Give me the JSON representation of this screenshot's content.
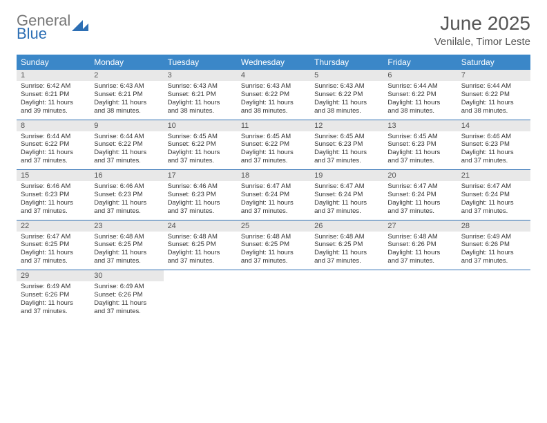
{
  "logo": {
    "word1": "General",
    "word2": "Blue"
  },
  "header": {
    "month_year": "June 2025",
    "location": "Venilale, Timor Leste"
  },
  "colors": {
    "header_bg": "#3b87c8",
    "header_text": "#ffffff",
    "daynum_bg": "#e8e8e8",
    "daynum_text": "#555555",
    "body_text": "#333333",
    "divider": "#2d6fb4",
    "title_text": "#555555",
    "logo_gray": "#777777",
    "logo_blue": "#2d6fb4"
  },
  "dow": [
    "Sunday",
    "Monday",
    "Tuesday",
    "Wednesday",
    "Thursday",
    "Friday",
    "Saturday"
  ],
  "weeks": [
    [
      {
        "n": "1",
        "sr": "Sunrise: 6:42 AM",
        "ss": "Sunset: 6:21 PM",
        "d1": "Daylight: 11 hours",
        "d2": "and 39 minutes."
      },
      {
        "n": "2",
        "sr": "Sunrise: 6:43 AM",
        "ss": "Sunset: 6:21 PM",
        "d1": "Daylight: 11 hours",
        "d2": "and 38 minutes."
      },
      {
        "n": "3",
        "sr": "Sunrise: 6:43 AM",
        "ss": "Sunset: 6:21 PM",
        "d1": "Daylight: 11 hours",
        "d2": "and 38 minutes."
      },
      {
        "n": "4",
        "sr": "Sunrise: 6:43 AM",
        "ss": "Sunset: 6:22 PM",
        "d1": "Daylight: 11 hours",
        "d2": "and 38 minutes."
      },
      {
        "n": "5",
        "sr": "Sunrise: 6:43 AM",
        "ss": "Sunset: 6:22 PM",
        "d1": "Daylight: 11 hours",
        "d2": "and 38 minutes."
      },
      {
        "n": "6",
        "sr": "Sunrise: 6:44 AM",
        "ss": "Sunset: 6:22 PM",
        "d1": "Daylight: 11 hours",
        "d2": "and 38 minutes."
      },
      {
        "n": "7",
        "sr": "Sunrise: 6:44 AM",
        "ss": "Sunset: 6:22 PM",
        "d1": "Daylight: 11 hours",
        "d2": "and 38 minutes."
      }
    ],
    [
      {
        "n": "8",
        "sr": "Sunrise: 6:44 AM",
        "ss": "Sunset: 6:22 PM",
        "d1": "Daylight: 11 hours",
        "d2": "and 37 minutes."
      },
      {
        "n": "9",
        "sr": "Sunrise: 6:44 AM",
        "ss": "Sunset: 6:22 PM",
        "d1": "Daylight: 11 hours",
        "d2": "and 37 minutes."
      },
      {
        "n": "10",
        "sr": "Sunrise: 6:45 AM",
        "ss": "Sunset: 6:22 PM",
        "d1": "Daylight: 11 hours",
        "d2": "and 37 minutes."
      },
      {
        "n": "11",
        "sr": "Sunrise: 6:45 AM",
        "ss": "Sunset: 6:22 PM",
        "d1": "Daylight: 11 hours",
        "d2": "and 37 minutes."
      },
      {
        "n": "12",
        "sr": "Sunrise: 6:45 AM",
        "ss": "Sunset: 6:23 PM",
        "d1": "Daylight: 11 hours",
        "d2": "and 37 minutes."
      },
      {
        "n": "13",
        "sr": "Sunrise: 6:45 AM",
        "ss": "Sunset: 6:23 PM",
        "d1": "Daylight: 11 hours",
        "d2": "and 37 minutes."
      },
      {
        "n": "14",
        "sr": "Sunrise: 6:46 AM",
        "ss": "Sunset: 6:23 PM",
        "d1": "Daylight: 11 hours",
        "d2": "and 37 minutes."
      }
    ],
    [
      {
        "n": "15",
        "sr": "Sunrise: 6:46 AM",
        "ss": "Sunset: 6:23 PM",
        "d1": "Daylight: 11 hours",
        "d2": "and 37 minutes."
      },
      {
        "n": "16",
        "sr": "Sunrise: 6:46 AM",
        "ss": "Sunset: 6:23 PM",
        "d1": "Daylight: 11 hours",
        "d2": "and 37 minutes."
      },
      {
        "n": "17",
        "sr": "Sunrise: 6:46 AM",
        "ss": "Sunset: 6:23 PM",
        "d1": "Daylight: 11 hours",
        "d2": "and 37 minutes."
      },
      {
        "n": "18",
        "sr": "Sunrise: 6:47 AM",
        "ss": "Sunset: 6:24 PM",
        "d1": "Daylight: 11 hours",
        "d2": "and 37 minutes."
      },
      {
        "n": "19",
        "sr": "Sunrise: 6:47 AM",
        "ss": "Sunset: 6:24 PM",
        "d1": "Daylight: 11 hours",
        "d2": "and 37 minutes."
      },
      {
        "n": "20",
        "sr": "Sunrise: 6:47 AM",
        "ss": "Sunset: 6:24 PM",
        "d1": "Daylight: 11 hours",
        "d2": "and 37 minutes."
      },
      {
        "n": "21",
        "sr": "Sunrise: 6:47 AM",
        "ss": "Sunset: 6:24 PM",
        "d1": "Daylight: 11 hours",
        "d2": "and 37 minutes."
      }
    ],
    [
      {
        "n": "22",
        "sr": "Sunrise: 6:47 AM",
        "ss": "Sunset: 6:25 PM",
        "d1": "Daylight: 11 hours",
        "d2": "and 37 minutes."
      },
      {
        "n": "23",
        "sr": "Sunrise: 6:48 AM",
        "ss": "Sunset: 6:25 PM",
        "d1": "Daylight: 11 hours",
        "d2": "and 37 minutes."
      },
      {
        "n": "24",
        "sr": "Sunrise: 6:48 AM",
        "ss": "Sunset: 6:25 PM",
        "d1": "Daylight: 11 hours",
        "d2": "and 37 minutes."
      },
      {
        "n": "25",
        "sr": "Sunrise: 6:48 AM",
        "ss": "Sunset: 6:25 PM",
        "d1": "Daylight: 11 hours",
        "d2": "and 37 minutes."
      },
      {
        "n": "26",
        "sr": "Sunrise: 6:48 AM",
        "ss": "Sunset: 6:25 PM",
        "d1": "Daylight: 11 hours",
        "d2": "and 37 minutes."
      },
      {
        "n": "27",
        "sr": "Sunrise: 6:48 AM",
        "ss": "Sunset: 6:26 PM",
        "d1": "Daylight: 11 hours",
        "d2": "and 37 minutes."
      },
      {
        "n": "28",
        "sr": "Sunrise: 6:49 AM",
        "ss": "Sunset: 6:26 PM",
        "d1": "Daylight: 11 hours",
        "d2": "and 37 minutes."
      }
    ],
    [
      {
        "n": "29",
        "sr": "Sunrise: 6:49 AM",
        "ss": "Sunset: 6:26 PM",
        "d1": "Daylight: 11 hours",
        "d2": "and 37 minutes."
      },
      {
        "n": "30",
        "sr": "Sunrise: 6:49 AM",
        "ss": "Sunset: 6:26 PM",
        "d1": "Daylight: 11 hours",
        "d2": "and 37 minutes."
      },
      null,
      null,
      null,
      null,
      null
    ]
  ]
}
